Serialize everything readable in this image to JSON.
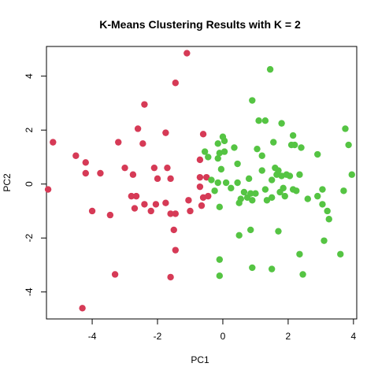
{
  "chart_data": {
    "type": "scatter",
    "title": "K-Means Clustering Results with K = 2",
    "xlabel": "PC1",
    "ylabel": "PC2",
    "xlim": [
      -5.4,
      4.1
    ],
    "ylim": [
      -5.0,
      5.1
    ],
    "xticks": [
      -4,
      -2,
      0,
      2,
      4
    ],
    "yticks": [
      -4,
      -2,
      0,
      2,
      4
    ],
    "xtick_labels": [
      "-4",
      "-2",
      "0",
      "2",
      "4"
    ],
    "ytick_labels": [
      "-4",
      "-2",
      "0",
      "2",
      "4"
    ],
    "grid": false,
    "legend": "none",
    "colors": {
      "cluster_1": "#d63a56",
      "cluster_2": "#55c443"
    },
    "series": [
      {
        "color": "#d63a56",
        "points": [
          [
            -5.2,
            1.55
          ],
          [
            -5.35,
            -0.2
          ],
          [
            -4.5,
            1.05
          ],
          [
            -4.2,
            0.8
          ],
          [
            -4.2,
            0.4
          ],
          [
            -4.0,
            -1.0
          ],
          [
            -3.75,
            0.4
          ],
          [
            -3.45,
            -1.15
          ],
          [
            -3.2,
            1.55
          ],
          [
            -3.3,
            -3.35
          ],
          [
            -3.0,
            0.6
          ],
          [
            -2.75,
            0.35
          ],
          [
            -2.8,
            -0.45
          ],
          [
            -2.65,
            -0.45
          ],
          [
            -2.6,
            2.05
          ],
          [
            -2.7,
            -0.9
          ],
          [
            -2.45,
            1.5
          ],
          [
            -2.4,
            2.95
          ],
          [
            -2.4,
            -0.75
          ],
          [
            -2.2,
            -1.0
          ],
          [
            -2.1,
            0.6
          ],
          [
            -2.0,
            0.2
          ],
          [
            -2.05,
            -0.75
          ],
          [
            -1.75,
            1.9
          ],
          [
            -1.75,
            -0.7
          ],
          [
            -1.7,
            0.6
          ],
          [
            -1.6,
            0.2
          ],
          [
            -1.6,
            -1.1
          ],
          [
            -1.45,
            -1.1
          ],
          [
            -1.5,
            -1.7
          ],
          [
            -1.45,
            3.75
          ],
          [
            -1.45,
            -2.45
          ],
          [
            -1.6,
            -3.45
          ],
          [
            -1.1,
            4.85
          ],
          [
            -1.05,
            -0.6
          ],
          [
            -1.0,
            -1.0
          ],
          [
            -0.7,
            0.25
          ],
          [
            -0.6,
            1.85
          ],
          [
            -0.6,
            -0.5
          ],
          [
            -0.65,
            -0.8
          ],
          [
            -0.5,
            0.25
          ],
          [
            -0.7,
            0.9
          ],
          [
            -0.7,
            -0.1
          ],
          [
            -0.45,
            -0.45
          ],
          [
            -4.3,
            -4.6
          ]
        ]
      },
      {
        "color": "#55c443",
        "points": [
          [
            -0.55,
            1.2
          ],
          [
            -0.45,
            1.0
          ],
          [
            -0.35,
            0.15
          ],
          [
            -0.25,
            -0.25
          ],
          [
            -0.15,
            1.5
          ],
          [
            -0.15,
            0.95
          ],
          [
            -0.1,
            1.15
          ],
          [
            -0.05,
            0.55
          ],
          [
            -0.15,
            0.05
          ],
          [
            -0.1,
            -0.85
          ],
          [
            -0.1,
            -2.8
          ],
          [
            -0.1,
            -3.4
          ],
          [
            0.0,
            1.75
          ],
          [
            0.05,
            1.6
          ],
          [
            0.05,
            1.2
          ],
          [
            0.1,
            0.05
          ],
          [
            0.25,
            -0.15
          ],
          [
            0.35,
            1.35
          ],
          [
            0.45,
            0.75
          ],
          [
            0.45,
            0.05
          ],
          [
            0.5,
            -0.7
          ],
          [
            0.5,
            -1.9
          ],
          [
            0.55,
            -0.55
          ],
          [
            0.65,
            -0.3
          ],
          [
            0.75,
            -0.5
          ],
          [
            0.8,
            0.2
          ],
          [
            0.85,
            -0.35
          ],
          [
            0.9,
            3.1
          ],
          [
            0.85,
            -1.7
          ],
          [
            0.9,
            -0.6
          ],
          [
            0.9,
            -3.1
          ],
          [
            1.0,
            -0.35
          ],
          [
            1.05,
            1.3
          ],
          [
            1.1,
            2.35
          ],
          [
            1.2,
            1.05
          ],
          [
            1.2,
            0.5
          ],
          [
            1.3,
            2.35
          ],
          [
            1.3,
            -0.2
          ],
          [
            1.35,
            -0.6
          ],
          [
            1.45,
            4.25
          ],
          [
            1.5,
            0.15
          ],
          [
            1.5,
            -3.15
          ],
          [
            1.5,
            -0.5
          ],
          [
            1.55,
            1.55
          ],
          [
            1.6,
            0.6
          ],
          [
            1.65,
            0.35
          ],
          [
            1.7,
            0.5
          ],
          [
            1.75,
            -0.3
          ],
          [
            1.7,
            -1.75
          ],
          [
            1.8,
            0.3
          ],
          [
            1.8,
            2.25
          ],
          [
            1.85,
            -0.15
          ],
          [
            1.9,
            -0.45
          ],
          [
            1.95,
            0.35
          ],
          [
            2.05,
            0.3
          ],
          [
            2.1,
            1.45
          ],
          [
            2.15,
            1.8
          ],
          [
            2.15,
            -0.2
          ],
          [
            2.2,
            1.45
          ],
          [
            2.25,
            -0.25
          ],
          [
            2.35,
            0.35
          ],
          [
            2.35,
            -2.6
          ],
          [
            2.4,
            1.35
          ],
          [
            2.45,
            -3.35
          ],
          [
            2.6,
            -0.55
          ],
          [
            2.9,
            -0.45
          ],
          [
            2.9,
            1.1
          ],
          [
            3.05,
            -0.2
          ],
          [
            3.05,
            -0.75
          ],
          [
            3.1,
            -2.1
          ],
          [
            3.2,
            -1.0
          ],
          [
            3.25,
            -1.3
          ],
          [
            3.6,
            -2.6
          ],
          [
            3.7,
            -0.25
          ],
          [
            3.75,
            2.05
          ],
          [
            3.85,
            1.45
          ],
          [
            3.95,
            0.35
          ]
        ]
      }
    ]
  }
}
